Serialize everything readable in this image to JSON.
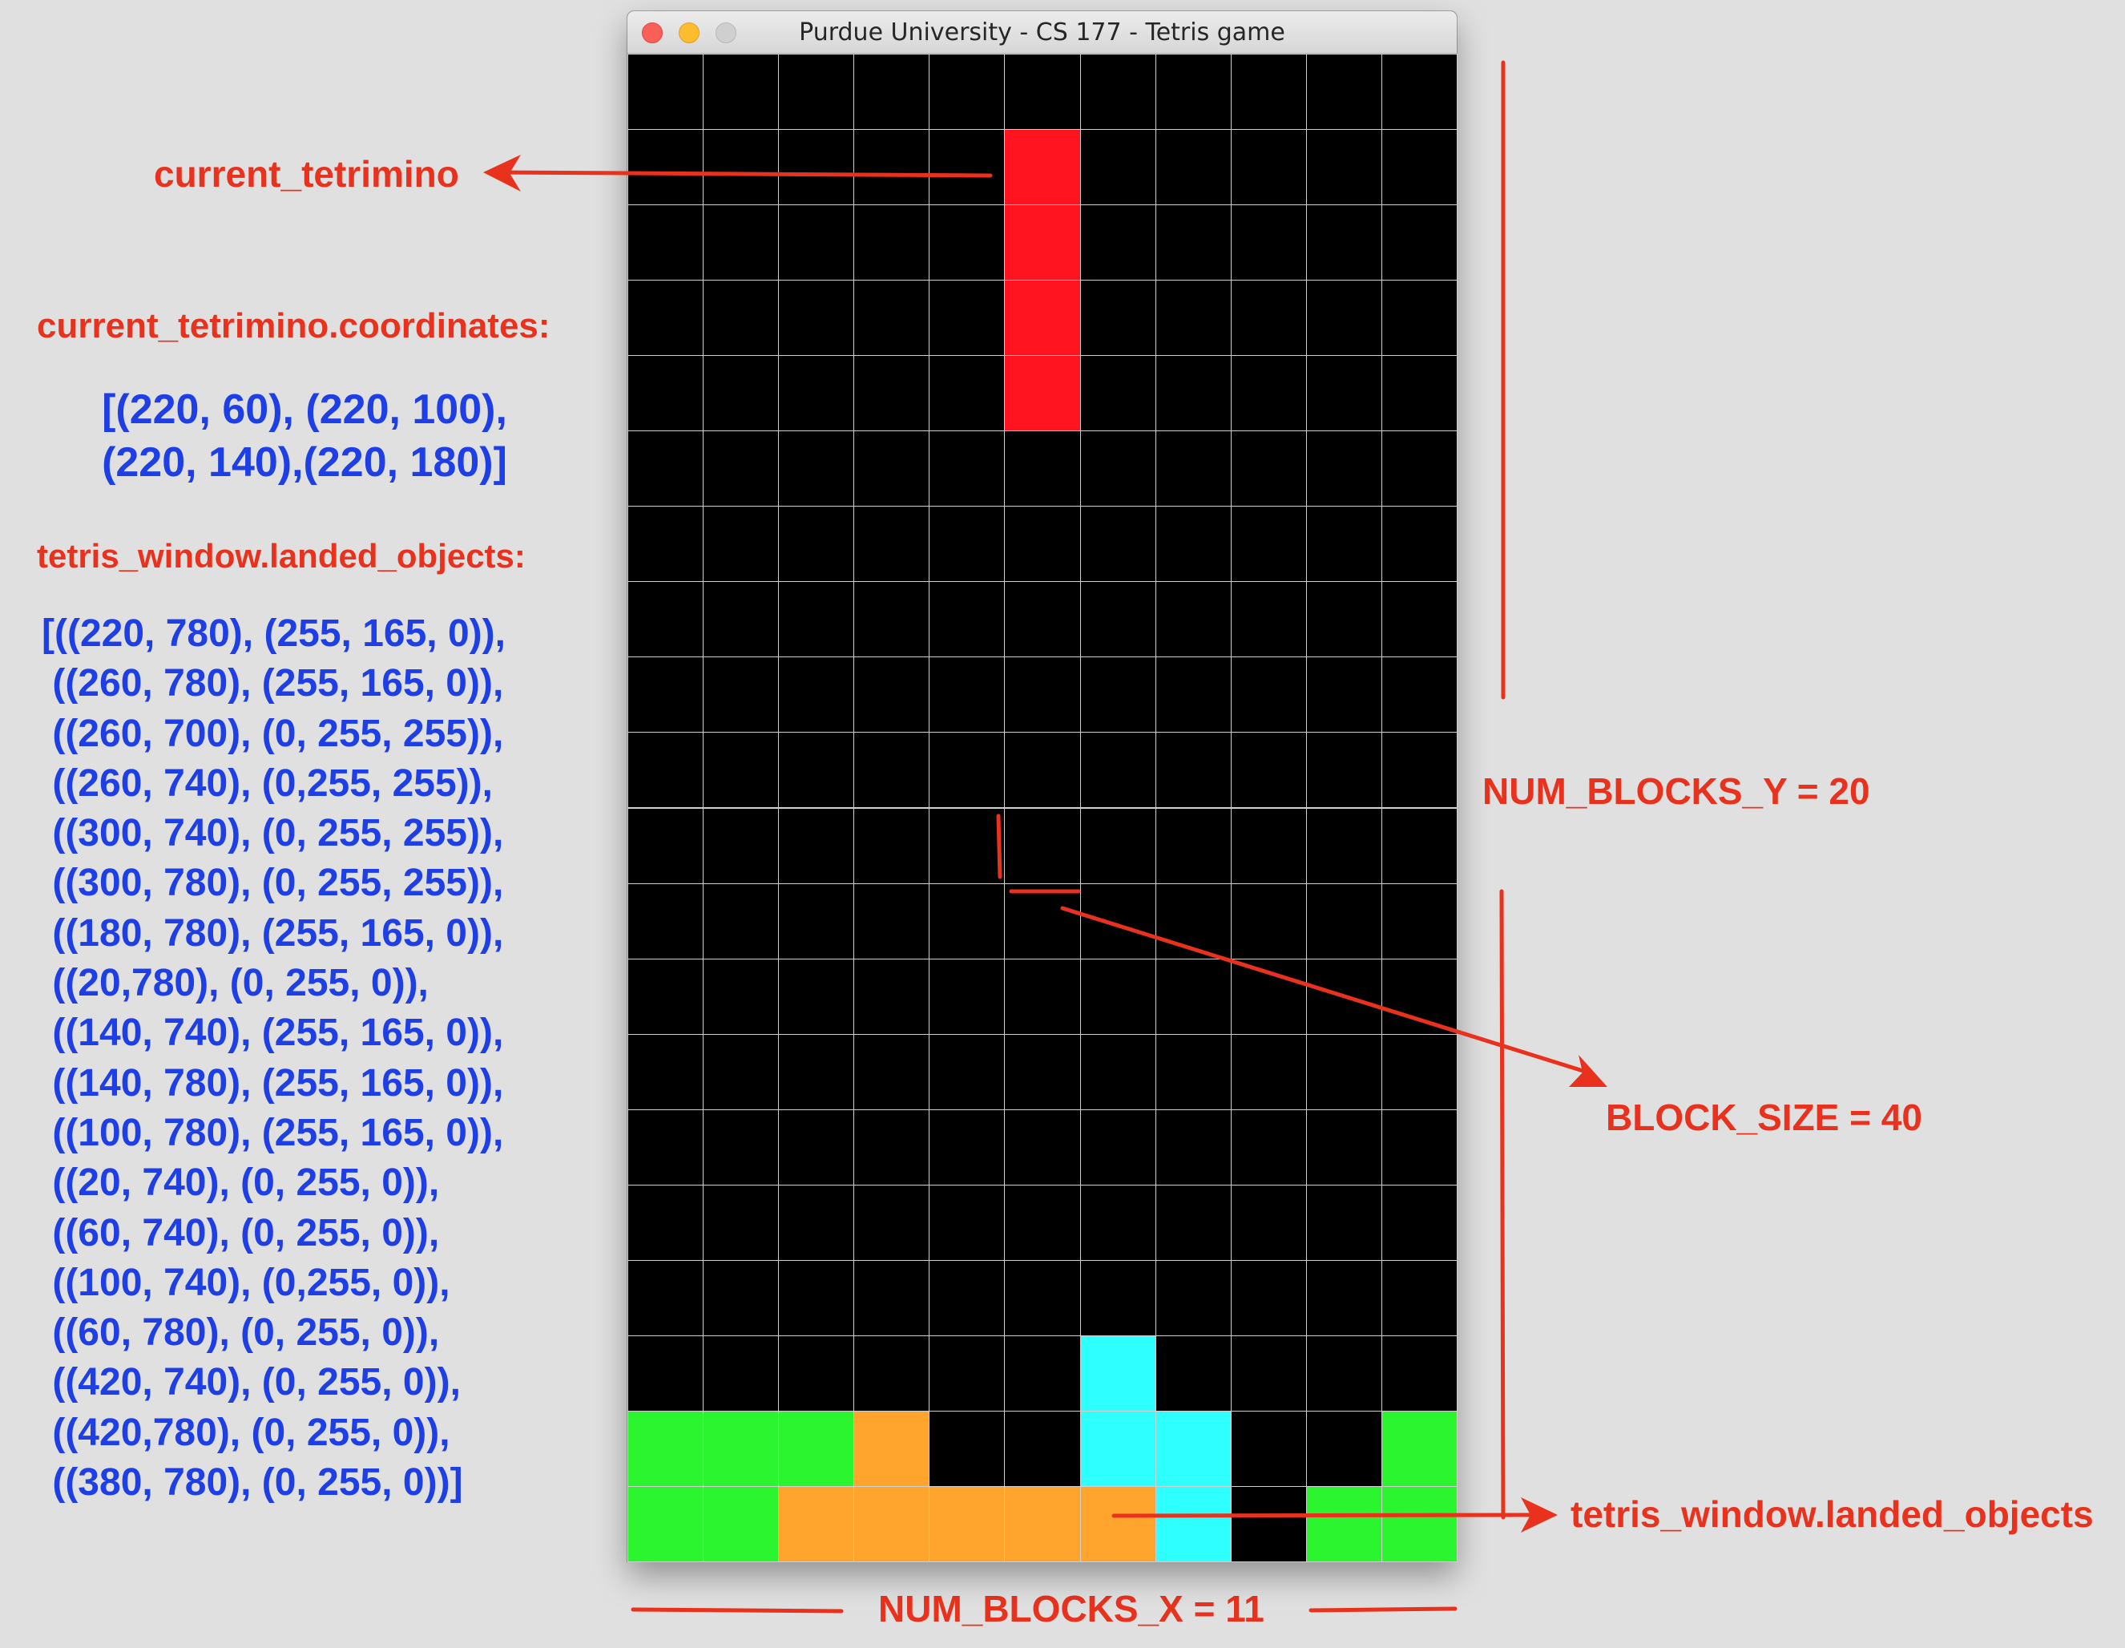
{
  "window": {
    "title": "Purdue University - CS 177 - Tetris game",
    "buttons": [
      "close",
      "minimize",
      "zoom"
    ]
  },
  "annotations": {
    "current_tetrimino": "current_tetrimino",
    "coordinates_heading": "current_tetrimino.coordinates:",
    "coordinates_values": [
      "[(220, 60), (220, 100),",
      "(220, 140),(220, 180)]"
    ],
    "landed_heading": "tetris_window.landed_objects:",
    "landed_values": [
      "[((220, 780), (255, 165, 0)),",
      " ((260, 780), (255, 165, 0)),",
      " ((260, 700), (0, 255, 255)),",
      " ((260, 740), (0,255, 255)),",
      " ((300, 740), (0, 255, 255)),",
      " ((300, 780), (0, 255, 255)),",
      " ((180, 780), (255, 165, 0)),",
      " ((20,780), (0, 255, 0)),",
      " ((140, 740), (255, 165, 0)),",
      " ((140, 780), (255, 165, 0)),",
      " ((100, 780), (255, 165, 0)),",
      " ((20, 740), (0, 255, 0)),",
      " ((60, 740), (0, 255, 0)),",
      " ((100, 740), (0,255, 0)),",
      " ((60, 780), (0, 255, 0)),",
      " ((420, 740), (0, 255, 0)),",
      " ((420,780), (0, 255, 0)),",
      " ((380, 780), (0, 255, 0))]"
    ],
    "num_blocks_y": "NUM_BLOCKS_Y = 20",
    "block_size": "BLOCK_SIZE = 40",
    "landed_objects_label": "tetris_window.landed_objects",
    "num_blocks_x": "NUM_BLOCKS_X = 11"
  },
  "board": {
    "columns": 11,
    "rows": 20,
    "grid_color": "#cfcfcf",
    "background": "#000000",
    "blocks": [
      {
        "col": 5,
        "row": 1,
        "color": "#ff1420"
      },
      {
        "col": 5,
        "row": 2,
        "color": "#ff1420"
      },
      {
        "col": 5,
        "row": 3,
        "color": "#ff1420"
      },
      {
        "col": 5,
        "row": 4,
        "color": "#ff1420"
      },
      {
        "col": 6,
        "row": 17,
        "color": "#2effff"
      },
      {
        "col": 0,
        "row": 18,
        "color": "#2af52e"
      },
      {
        "col": 1,
        "row": 18,
        "color": "#2af52e"
      },
      {
        "col": 2,
        "row": 18,
        "color": "#2af52e"
      },
      {
        "col": 3,
        "row": 18,
        "color": "#ffa52e"
      },
      {
        "col": 6,
        "row": 18,
        "color": "#2effff"
      },
      {
        "col": 7,
        "row": 18,
        "color": "#2effff"
      },
      {
        "col": 10,
        "row": 18,
        "color": "#2af52e"
      },
      {
        "col": 0,
        "row": 19,
        "color": "#2af52e"
      },
      {
        "col": 1,
        "row": 19,
        "color": "#2af52e"
      },
      {
        "col": 2,
        "row": 19,
        "color": "#ffa52e"
      },
      {
        "col": 3,
        "row": 19,
        "color": "#ffa52e"
      },
      {
        "col": 4,
        "row": 19,
        "color": "#ffa52e"
      },
      {
        "col": 5,
        "row": 19,
        "color": "#ffa52e"
      },
      {
        "col": 6,
        "row": 19,
        "color": "#ffa52e"
      },
      {
        "col": 7,
        "row": 19,
        "color": "#2effff"
      },
      {
        "col": 9,
        "row": 19,
        "color": "#2af52e"
      },
      {
        "col": 10,
        "row": 19,
        "color": "#2af52e"
      }
    ]
  },
  "colors": {
    "annotation_red": "#e8321e",
    "annotation_blue": "#1f3fe6"
  }
}
